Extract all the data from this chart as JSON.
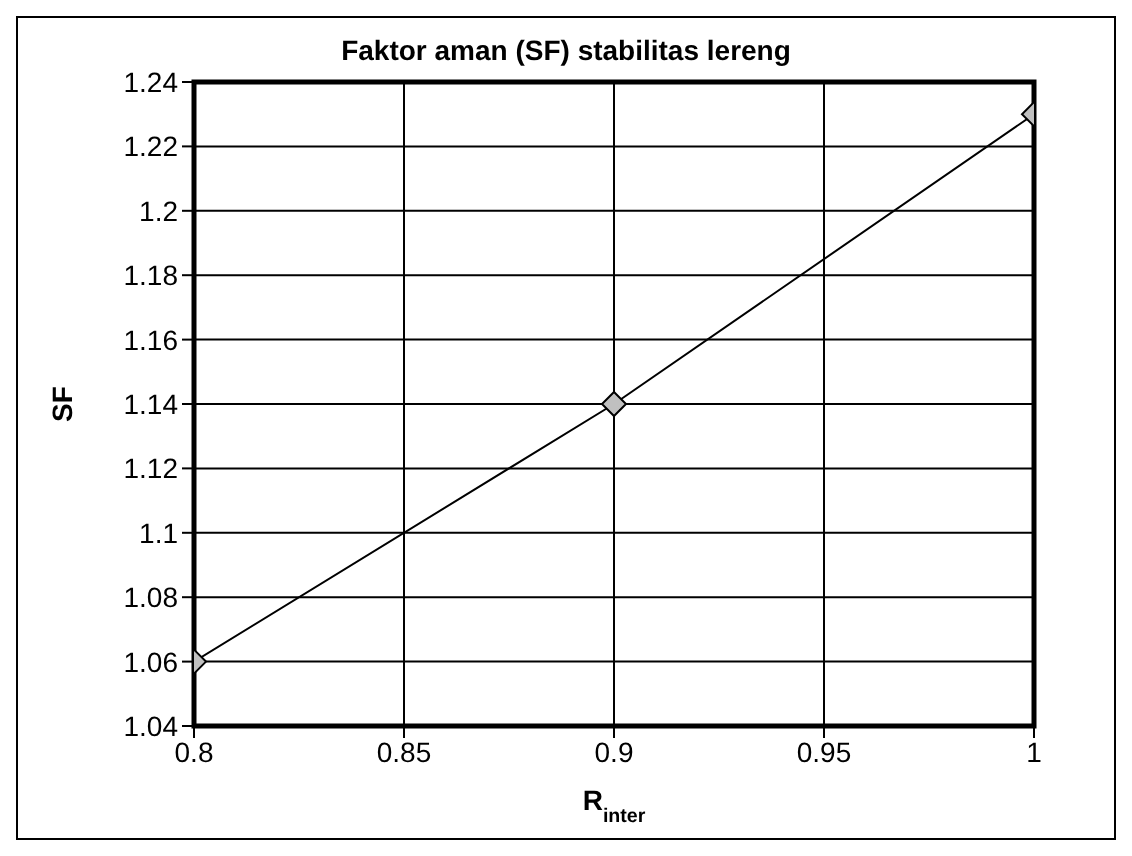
{
  "chart_data": {
    "type": "line",
    "title": "Faktor aman (SF) stabilitas lereng",
    "xlabel": "R$_{inter}$",
    "ylabel": "SF",
    "x": [
      0.8,
      0.9,
      1
    ],
    "series": [
      {
        "color": "#000000",
        "values": [
          1.06,
          1.14,
          1.23
        ]
      }
    ],
    "xlim": [
      0.8,
      1
    ],
    "xticks": [
      0.8,
      0.85,
      0.9,
      0.95,
      1
    ],
    "ylim": [
      1.04,
      1.24
    ],
    "yticks": [
      1.04,
      1.06,
      1.08,
      1.1,
      1.12,
      1.14,
      1.16,
      1.18,
      1.2,
      1.22,
      1.24
    ],
    "grid": true,
    "legend": false,
    "marker": "diamond",
    "line_style": "solid"
  }
}
